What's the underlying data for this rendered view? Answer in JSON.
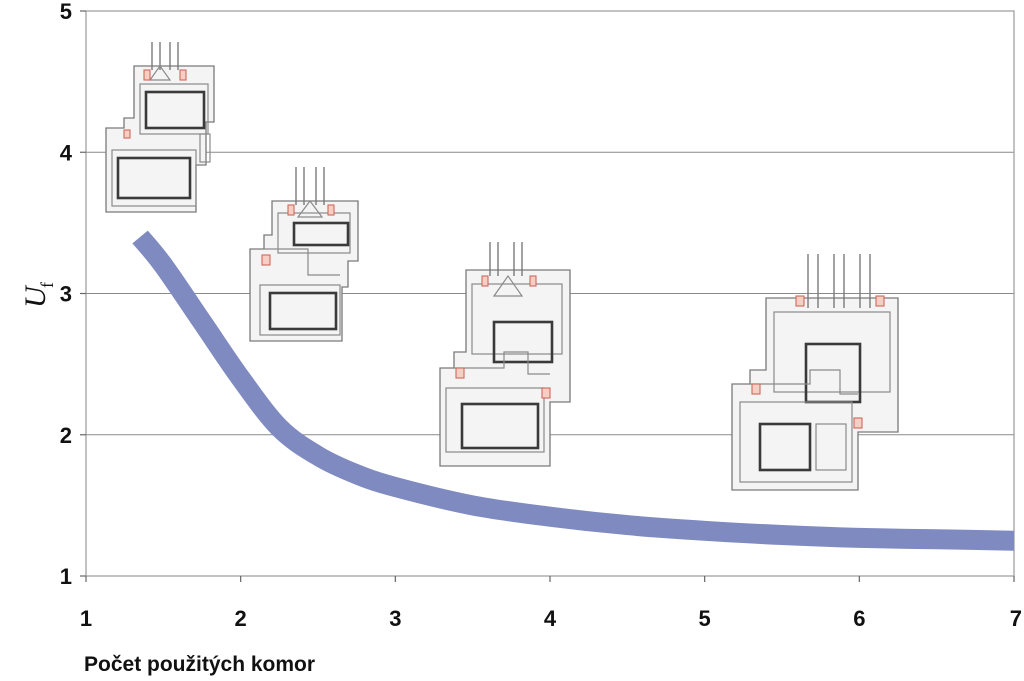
{
  "colors": {
    "curve": "#7f8ac0",
    "grid": "#8a8a8a",
    "profile_stroke": "#7a7a7a",
    "seal": "#d0685a"
  },
  "chart_data": {
    "type": "line",
    "title": "",
    "xlabel": "Počet použitých komor",
    "ylabel": "U",
    "ylabel_subscript": "f",
    "xlim": [
      1,
      7
    ],
    "ylim": [
      1,
      5
    ],
    "xticks": [
      1,
      2,
      3,
      4,
      5,
      6,
      7
    ],
    "yticks": [
      1,
      2,
      3,
      4,
      5
    ],
    "grid": "horizontal",
    "series": [
      {
        "x": [
          1.35,
          1.5,
          1.75,
          2.0,
          2.25,
          2.5,
          2.75,
          3.0,
          3.5,
          4.0,
          4.5,
          5.0,
          5.5,
          6.0,
          6.5,
          7.0
        ],
        "y": [
          3.4,
          3.2,
          2.8,
          2.4,
          2.05,
          1.85,
          1.72,
          1.63,
          1.5,
          1.42,
          1.36,
          1.32,
          1.29,
          1.27,
          1.26,
          1.25
        ]
      }
    ],
    "illustrations": [
      {
        "icon": "window-profile-1-chamber-icon",
        "chambers": 1
      },
      {
        "icon": "window-profile-2-chamber-icon",
        "chambers": 2
      },
      {
        "icon": "window-profile-3-chamber-icon",
        "chambers": 3
      },
      {
        "icon": "window-profile-5-chamber-icon",
        "chambers": 5
      }
    ]
  }
}
